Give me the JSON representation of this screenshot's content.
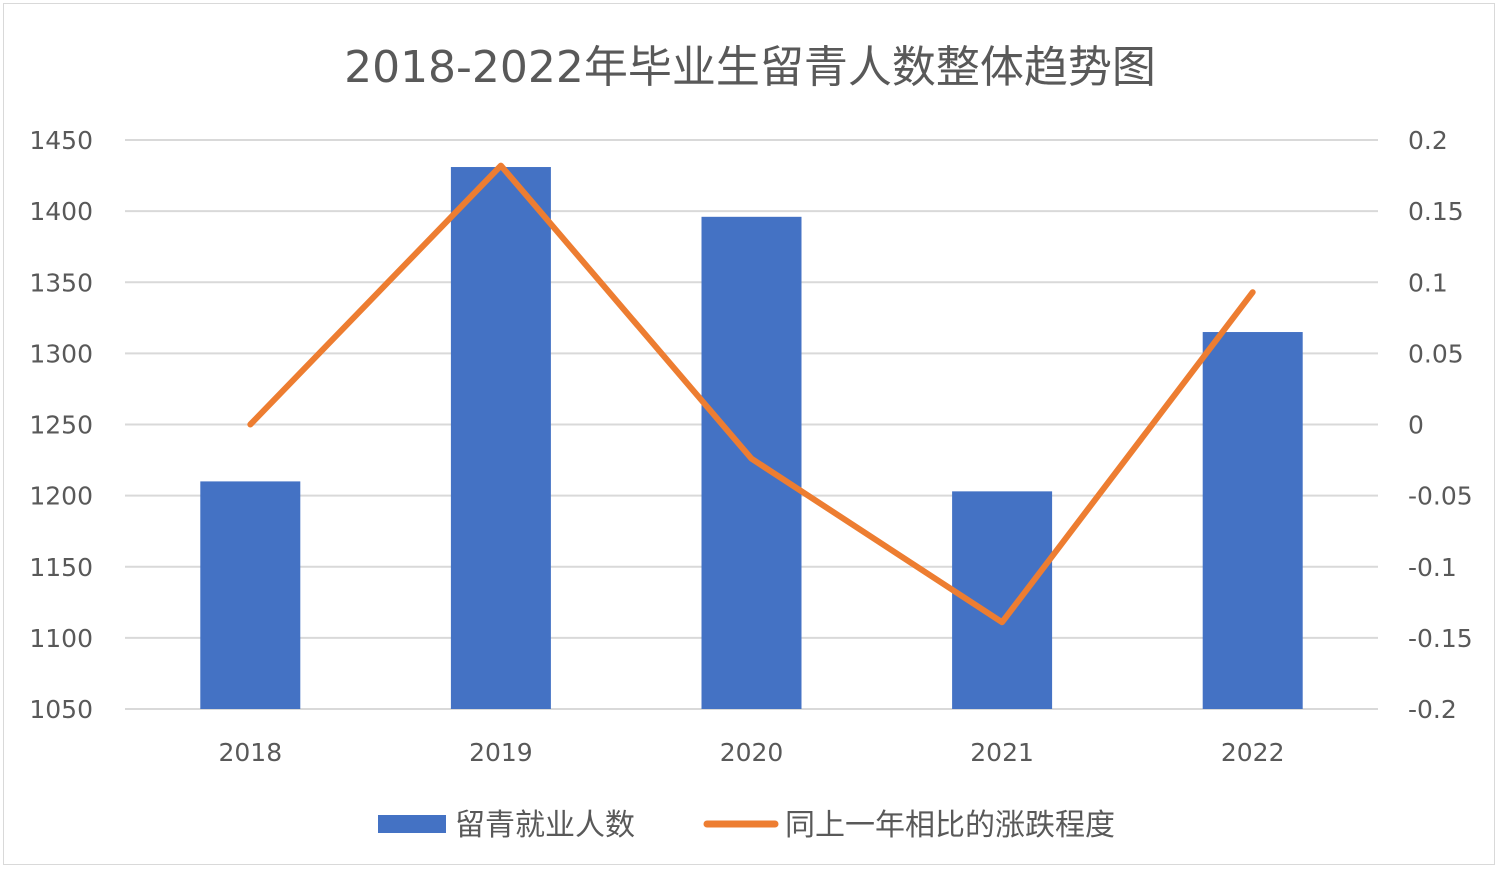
{
  "chart_data": {
    "type": "bar",
    "title": "2018-2022年毕业生留青人数整体趋势图",
    "categories": [
      "2018",
      "2019",
      "2020",
      "2021",
      "2022"
    ],
    "series": [
      {
        "name": "留青就业人数",
        "type": "bar",
        "axis": "left",
        "color": "#4472C4",
        "values": [
          1210,
          1431,
          1396,
          1203,
          1315
        ]
      },
      {
        "name": "同上一年相比的涨跌程度",
        "type": "line",
        "axis": "right",
        "color": "#ED7D31",
        "values": [
          0,
          0.182,
          -0.024,
          -0.139,
          0.093
        ]
      }
    ],
    "y_left": {
      "min": 1050,
      "max": 1450,
      "ticks": [
        "1050",
        "1100",
        "1150",
        "1200",
        "1250",
        "1300",
        "1350",
        "1400",
        "1450"
      ]
    },
    "y_right": {
      "min": -0.2,
      "max": 0.2,
      "ticks": [
        "-0.2",
        "-0.15",
        "-0.1",
        "-0.05",
        "0",
        "0.05",
        "0.1",
        "0.15",
        "0.2"
      ]
    },
    "grid": true,
    "legend_position": "bottom"
  }
}
